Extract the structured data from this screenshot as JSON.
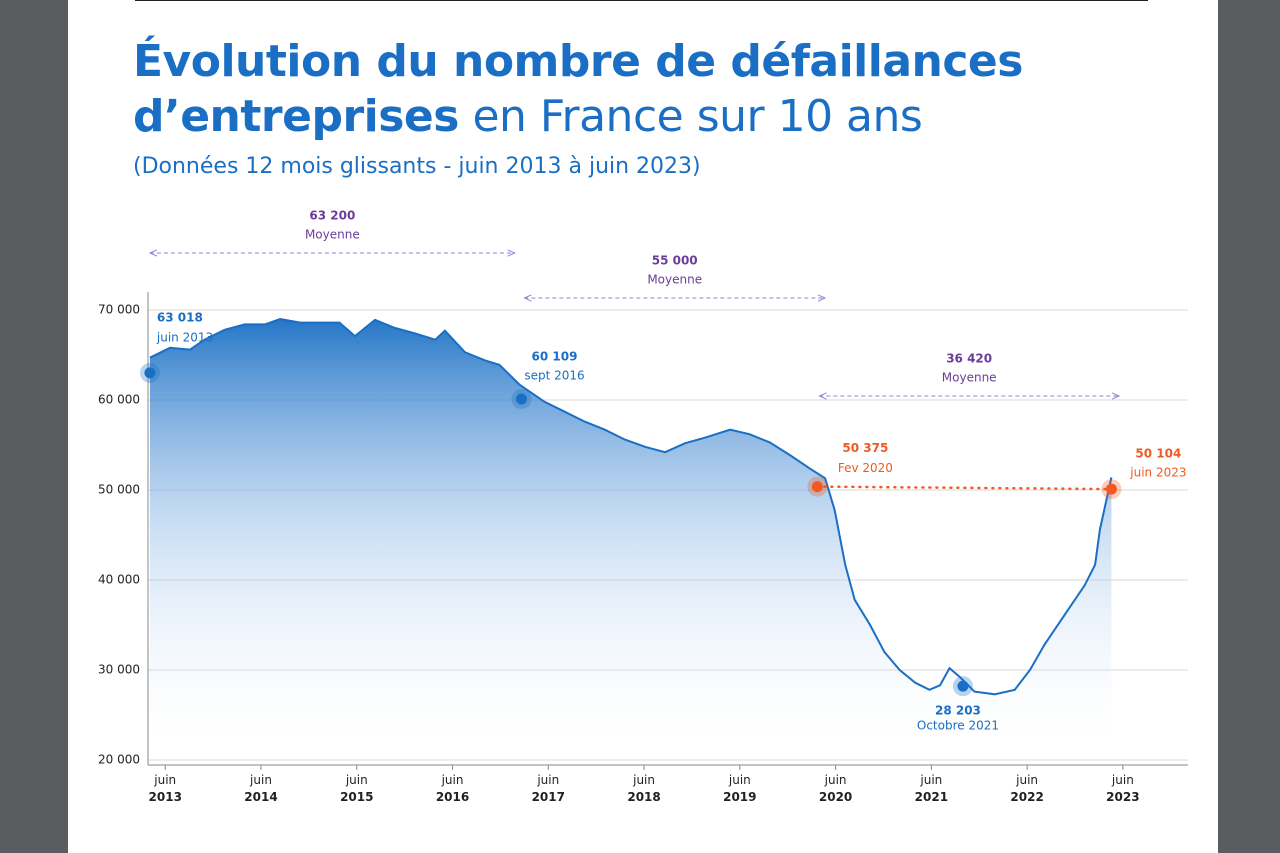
{
  "header": {
    "title_line1": "Évolution du nombre de défaillances",
    "title_bold": "d’entreprises",
    "title_regular": "en France sur 10 ans",
    "subtitle": "(Données 12 mois glissants - juin 2013 à juin 2023)"
  },
  "chart_data": {
    "type": "line",
    "x": [
      2013.26,
      2013.47,
      2013.68,
      2013.83,
      2014.04,
      2014.25,
      2014.46,
      2014.62,
      2014.83,
      2015.03,
      2015.24,
      2015.4,
      2015.61,
      2015.82,
      2016.03,
      2016.24,
      2016.34,
      2016.55,
      2016.76,
      2016.91,
      2017.12,
      2017.38,
      2017.59,
      2017.8,
      2018.01,
      2018.22,
      2018.43,
      2018.64,
      2018.85,
      2019.05,
      2019.32,
      2019.52,
      2019.73,
      2019.94,
      2020.15,
      2020.31,
      2020.41,
      2020.52,
      2020.62,
      2020.78,
      2020.93,
      2021.09,
      2021.25,
      2021.4,
      2021.51,
      2021.61,
      2021.72,
      2021.87,
      2022.08,
      2022.29,
      2022.45,
      2022.6,
      2022.81,
      2023.02,
      2023.13,
      2023.18,
      2023.3
    ],
    "series": [
      {
        "color": "#1a6fc4",
        "values": [
          64700,
          65800,
          65600,
          66700,
          67800,
          68400,
          68400,
          69000,
          68600,
          68600,
          68600,
          67100,
          68900,
          68000,
          67400,
          66700,
          67700,
          65300,
          64400,
          63900,
          61700,
          59800,
          58700,
          57600,
          56700,
          55600,
          54800,
          54200,
          55200,
          55800,
          56700,
          56200,
          55300,
          53900,
          52400,
          51300,
          47800,
          41700,
          37800,
          35000,
          32000,
          30000,
          28600,
          27800,
          28300,
          30200,
          29200,
          27600,
          27300,
          27800,
          30000,
          32800,
          36100,
          39400,
          41700,
          45600,
          51400
        ]
      }
    ],
    "xlim": [
      2013.24,
      2024.1
    ],
    "xticks": [
      {
        "value": 2013.42,
        "label": "juin 2013"
      },
      {
        "value": 2014.42,
        "label": "juin 2014"
      },
      {
        "value": 2015.42,
        "label": "juin 2015"
      },
      {
        "value": 2016.42,
        "label": "juin 2016"
      },
      {
        "value": 2017.42,
        "label": "juin 2017"
      },
      {
        "value": 2018.42,
        "label": "juin 2018"
      },
      {
        "value": 2019.42,
        "label": "juin 2019"
      },
      {
        "value": 2020.42,
        "label": "juin 2020"
      },
      {
        "value": 2021.42,
        "label": "juin 2021"
      },
      {
        "value": 2022.42,
        "label": "juin 2022"
      },
      {
        "value": 2023.42,
        "label": "juin 2023"
      }
    ],
    "ylim": [
      20000,
      72000
    ],
    "yticks": [
      {
        "value": 20000,
        "label": "20 000"
      },
      {
        "value": 30000,
        "label": "30 000"
      },
      {
        "value": 40000,
        "label": "40 000"
      },
      {
        "value": 50000,
        "label": "50 000"
      },
      {
        "value": 60000,
        "label": "60 000"
      },
      {
        "value": 70000,
        "label": "70 000"
      }
    ],
    "grid": true,
    "points": [
      {
        "x": 2013.26,
        "value": 63018,
        "label": "63 018",
        "date": "juin 2013",
        "color": "#1a6fc4"
      },
      {
        "x": 2017.14,
        "value": 60109,
        "label": "60 109",
        "date": "sept 2016",
        "color": "#1a6fc4"
      },
      {
        "x": 2020.23,
        "value": 50375,
        "label": "50 375",
        "date": "Fev 2020",
        "color": "#f05a22"
      },
      {
        "x": 2021.75,
        "value": 28203,
        "label": "28 203",
        "date": "Octobre 2021",
        "color": "#1a6fc4"
      },
      {
        "x": 2023.3,
        "value": 50104,
        "label": "50 104",
        "date": "juin 2023",
        "color": "#f05a22"
      }
    ],
    "averages": [
      {
        "value": 63200,
        "label": "63 200",
        "text": "Moyenne",
        "x": [
          2013.26,
          2017.07
        ]
      },
      {
        "value": 55000,
        "label": "55 000",
        "text": "Moyenne",
        "x": [
          2017.17,
          2020.31
        ]
      },
      {
        "value": 36420,
        "label": "36 420",
        "text": "Moyenne",
        "x": [
          2020.25,
          2023.38
        ]
      }
    ]
  }
}
